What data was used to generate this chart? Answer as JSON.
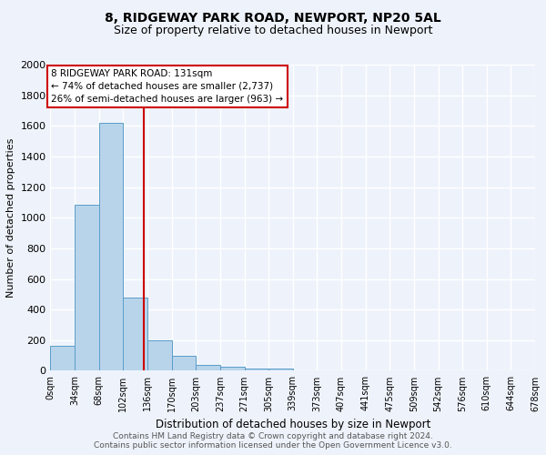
{
  "title": "8, RIDGEWAY PARK ROAD, NEWPORT, NP20 5AL",
  "subtitle": "Size of property relative to detached houses in Newport",
  "xlabel": "Distribution of detached houses by size in Newport",
  "ylabel": "Number of detached properties",
  "bar_values": [
    163,
    1085,
    1620,
    480,
    200,
    100,
    40,
    25,
    15,
    15,
    0,
    0,
    0,
    0,
    0,
    0,
    0,
    0,
    0,
    0
  ],
  "bin_labels": [
    "0sqm",
    "34sqm",
    "68sqm",
    "102sqm",
    "136sqm",
    "170sqm",
    "203sqm",
    "237sqm",
    "271sqm",
    "305sqm",
    "339sqm",
    "373sqm",
    "407sqm",
    "441sqm",
    "475sqm",
    "509sqm",
    "542sqm",
    "576sqm",
    "610sqm",
    "644sqm",
    "678sqm"
  ],
  "bar_color": "#b8d4eb",
  "bar_edge_color": "#5a9dc8",
  "background_color": "#eef3fb",
  "grid_color": "#ffffff",
  "vline_x": 131,
  "vline_color": "#cc0000",
  "annotation_text": "8 RIDGEWAY PARK ROAD: 131sqm\n← 74% of detached houses are smaller (2,737)\n26% of semi-detached houses are larger (963) →",
  "annotation_box_color": "#ffffff",
  "annotation_border_color": "#cc0000",
  "footer_text": "Contains HM Land Registry data © Crown copyright and database right 2024.\nContains public sector information licensed under the Open Government Licence v3.0.",
  "ylim": [
    0,
    2000
  ],
  "yticks": [
    0,
    200,
    400,
    600,
    800,
    1000,
    1200,
    1400,
    1600,
    1800,
    2000
  ],
  "bin_width": 34,
  "num_bins": 20,
  "title_fontsize": 10,
  "subtitle_fontsize": 9
}
